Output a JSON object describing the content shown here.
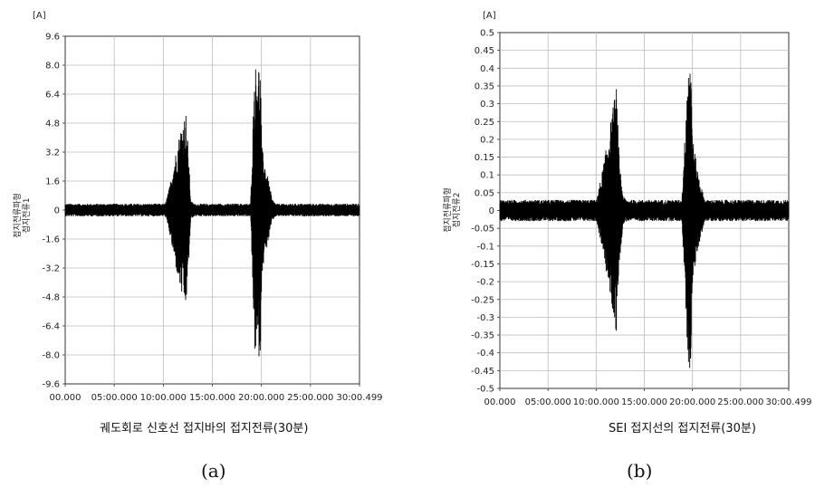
{
  "chart_data": [
    {
      "id": "a",
      "type": "line",
      "unit": "[A]",
      "ylabel_lines": [
        "접지전류파형",
        "접지전류1"
      ],
      "caption": "궤도회로 신호선 접지바의 접지전류(30분)",
      "panel_label": "(a)",
      "ylim": [
        -9.6,
        9.6
      ],
      "yticks": [
        "9.6",
        "8.0",
        "6.4",
        "4.8",
        "3.2",
        "1.6",
        "0",
        "-1.6",
        "-3.2",
        "-4.8",
        "-6.4",
        "-8.0",
        "-9.6"
      ],
      "xlim": [
        0,
        30.008
      ],
      "xtick_labels": [
        "00.000",
        "05:00.000",
        "10:00.000",
        "15:00.000",
        "20:00.000",
        "25:00.000",
        "30:00.499"
      ],
      "grid": true,
      "baseline_noise": 0.35,
      "envelope": [
        {
          "t": 0,
          "v": 0.35
        },
        {
          "t": 10.2,
          "v": 0.35
        },
        {
          "t": 10.6,
          "v": 1.2
        },
        {
          "t": 11.2,
          "v": 3.0
        },
        {
          "t": 11.8,
          "v": 4.6
        },
        {
          "t": 12.3,
          "v": 5.5
        },
        {
          "t": 12.6,
          "v": 3.0
        },
        {
          "t": 12.8,
          "v": 0.5
        },
        {
          "t": 13.2,
          "v": 0.35
        },
        {
          "t": 18.9,
          "v": 0.35
        },
        {
          "t": 19.1,
          "v": 4.0
        },
        {
          "t": 19.3,
          "v": 7.8
        },
        {
          "t": 19.6,
          "v": 8.3
        },
        {
          "t": 19.9,
          "v": 8.0
        },
        {
          "t": 20.05,
          "v": 3.5
        },
        {
          "t": 20.4,
          "v": 2.5
        },
        {
          "t": 20.8,
          "v": 1.5
        },
        {
          "t": 21.1,
          "v": 0.6
        },
        {
          "t": 21.5,
          "v": 0.35
        },
        {
          "t": 30.008,
          "v": 0.35
        }
      ]
    },
    {
      "id": "b",
      "type": "line",
      "unit": "[A]",
      "ylabel_lines": [
        "접지전류파형",
        "접지전류2"
      ],
      "caption": "SEI 접지선의 접지전류(30분)",
      "panel_label": "(b)",
      "ylim": [
        -0.5,
        0.5
      ],
      "yticks": [
        "0.5",
        "0.45",
        "0.4",
        "0.35",
        "0.3",
        "0.25",
        "0.2",
        "0.15",
        "0.1",
        "0.05",
        "0",
        "-0.05",
        "-0.1",
        "-0.15",
        "-0.2",
        "-0.25",
        "-0.3",
        "-0.35",
        "-0.4",
        "-0.45",
        "-0.5"
      ],
      "xlim": [
        0,
        30.008
      ],
      "xtick_labels": [
        "00.000",
        "05:00.000",
        "10:00.000",
        "15:00.000",
        "20:00.000",
        "25:00.000",
        "30:00.499"
      ],
      "grid": true,
      "baseline_noise": 0.03,
      "envelope": [
        {
          "t": 0,
          "v": 0.03
        },
        {
          "t": 10.0,
          "v": 0.03
        },
        {
          "t": 10.5,
          "v": 0.09
        },
        {
          "t": 11.2,
          "v": 0.2
        },
        {
          "t": 11.8,
          "v": 0.3
        },
        {
          "t": 12.1,
          "v": 0.35
        },
        {
          "t": 12.4,
          "v": 0.15
        },
        {
          "t": 12.8,
          "v": 0.04
        },
        {
          "t": 13.2,
          "v": 0.03
        },
        {
          "t": 18.9,
          "v": 0.03
        },
        {
          "t": 19.2,
          "v": 0.2
        },
        {
          "t": 19.5,
          "v": 0.42
        },
        {
          "t": 19.8,
          "v": 0.46
        },
        {
          "t": 20.05,
          "v": 0.2
        },
        {
          "t": 20.5,
          "v": 0.12
        },
        {
          "t": 20.9,
          "v": 0.07
        },
        {
          "t": 21.3,
          "v": 0.03
        },
        {
          "t": 30.008,
          "v": 0.03
        }
      ]
    }
  ]
}
